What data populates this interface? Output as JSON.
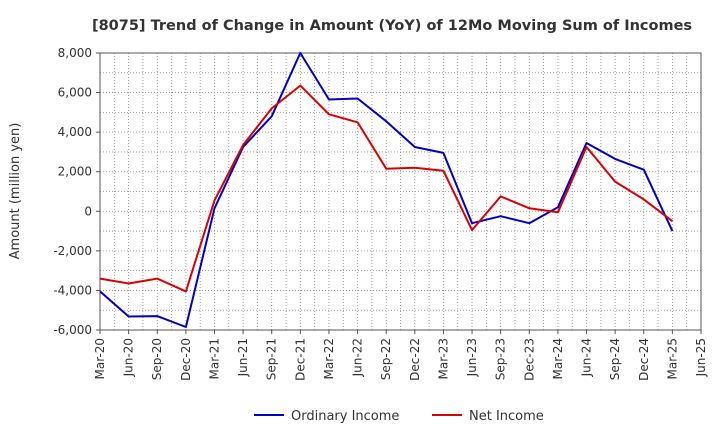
{
  "chart_data": {
    "type": "line",
    "title": "[8075]  Trend of Change in Amount (YoY) of 12Mo Moving Sum of Incomes",
    "ylabel": "Amount (million yen)",
    "xlabel": "",
    "categories": [
      "Mar-20",
      "Jun-20",
      "Sep-20",
      "Dec-20",
      "Mar-21",
      "Jun-21",
      "Sep-21",
      "Dec-21",
      "Mar-22",
      "Jun-22",
      "Sep-22",
      "Dec-22",
      "Mar-23",
      "Jun-23",
      "Sep-23",
      "Dec-23",
      "Mar-24",
      "Jun-24",
      "Sep-24",
      "Dec-24",
      "Mar-25",
      "Jun-25"
    ],
    "ylim": [
      -6000,
      8000
    ],
    "yticks": [
      -6000,
      -4000,
      -2000,
      0,
      2000,
      4000,
      6000,
      8000
    ],
    "ytick_labels": [
      "-6,000",
      "-4,000",
      "-2,000",
      "0",
      "2,000",
      "4,000",
      "6,000",
      "8,000"
    ],
    "grid": true,
    "legend_position": "bottom",
    "series": [
      {
        "name": "Ordinary Income",
        "color": "#0000cc",
        "values": [
          -4050,
          -5320,
          -5300,
          -5850,
          150,
          3250,
          4800,
          8000,
          5650,
          5700,
          4550,
          3250,
          2950,
          -600,
          -250,
          -600,
          200,
          3450,
          2650,
          2100,
          -1000,
          null
        ]
      },
      {
        "name": "Net Income",
        "color": "#dd0000",
        "values": [
          -3400,
          -3650,
          -3400,
          -4050,
          550,
          3350,
          5200,
          6350,
          4900,
          4500,
          2150,
          2200,
          2050,
          -950,
          750,
          150,
          -50,
          3250,
          1500,
          600,
          -500,
          null
        ]
      }
    ]
  }
}
